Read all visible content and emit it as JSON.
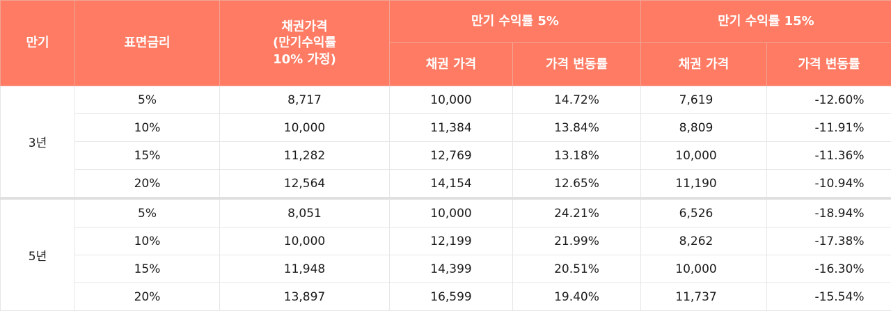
{
  "header": {
    "maturity": "만기",
    "coupon": "표면금리",
    "bond_price_1": "채권가격",
    "bond_price_2": "(만기수익률",
    "bond_price_3": "10% 가정)",
    "group5": "만기 수익률 5%",
    "group15": "만기 수익률 15%",
    "price": "채권 가격",
    "change": "가격 변동률"
  },
  "groups": [
    {
      "maturity": "3년",
      "rows": [
        {
          "coupon": "5%",
          "base": "8,717",
          "p5": "10,000",
          "c5": "14.72%",
          "p15": "7,619",
          "c15": "-12.60%"
        },
        {
          "coupon": "10%",
          "base": "10,000",
          "p5": "11,384",
          "c5": "13.84%",
          "p15": "8,809",
          "c15": "-11.91%"
        },
        {
          "coupon": "15%",
          "base": "11,282",
          "p5": "12,769",
          "c5": "13.18%",
          "p15": "10,000",
          "c15": "-11.36%"
        },
        {
          "coupon": "20%",
          "base": "12,564",
          "p5": "14,154",
          "c5": "12.65%",
          "p15": "11,190",
          "c15": "-10.94%"
        }
      ]
    },
    {
      "maturity": "5년",
      "rows": [
        {
          "coupon": "5%",
          "base": "8,051",
          "p5": "10,000",
          "c5": "24.21%",
          "p15": "6,526",
          "c15": "-18.94%"
        },
        {
          "coupon": "10%",
          "base": "10,000",
          "p5": "12,199",
          "c5": "21.99%",
          "p15": "8,262",
          "c15": "-17.38%"
        },
        {
          "coupon": "15%",
          "base": "11,948",
          "p5": "14,399",
          "c5": "20.51%",
          "p15": "10,000",
          "c15": "-16.30%"
        },
        {
          "coupon": "20%",
          "base": "13,897",
          "p5": "16,599",
          "c5": "19.40%",
          "p15": "11,737",
          "c15": "-15.54%"
        }
      ]
    }
  ]
}
